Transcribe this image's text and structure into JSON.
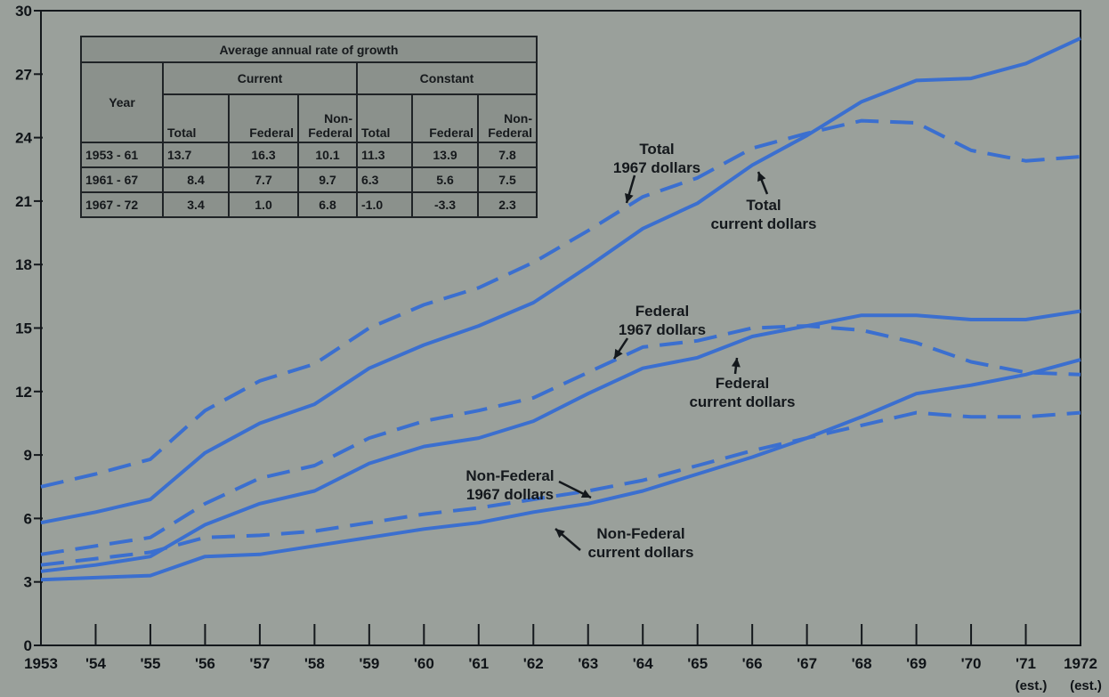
{
  "chart_data": {
    "type": "line",
    "x": [
      "1953",
      "'54",
      "'55",
      "'56",
      "'57",
      "'58",
      "'59",
      "'60",
      "'61",
      "'62",
      "'63",
      "'64",
      "'65",
      "'66",
      "'67",
      "'68",
      "'69",
      "'70",
      "'71",
      "1972"
    ],
    "x_sublabels": {
      "'71": "(est.)",
      "1972": "(est.)"
    },
    "yticks": [
      0,
      3,
      6,
      9,
      12,
      15,
      18,
      21,
      24,
      27,
      30
    ],
    "ylim": [
      0,
      30
    ],
    "grid": false,
    "line_color": "#3b6fcf",
    "series": [
      {
        "style": "solid",
        "values": [
          5.8,
          6.3,
          6.9,
          9.1,
          10.5,
          11.4,
          13.1,
          14.2,
          15.1,
          16.2,
          17.9,
          19.7,
          20.9,
          22.7,
          24.1,
          25.7,
          26.7,
          26.8,
          27.5,
          28.7
        ]
      },
      {
        "style": "dashed",
        "values": [
          7.5,
          8.1,
          8.8,
          11.1,
          12.5,
          13.3,
          15.0,
          16.1,
          16.9,
          18.1,
          19.6,
          21.2,
          22.1,
          23.5,
          24.2,
          24.8,
          24.7,
          23.4,
          22.9,
          23.1
        ]
      },
      {
        "style": "solid",
        "values": [
          3.5,
          3.8,
          4.2,
          5.7,
          6.7,
          7.3,
          8.6,
          9.4,
          9.8,
          10.6,
          11.9,
          13.1,
          13.6,
          14.6,
          15.1,
          15.6,
          15.6,
          15.4,
          15.4,
          15.8
        ]
      },
      {
        "style": "dashed",
        "values": [
          4.3,
          4.7,
          5.1,
          6.7,
          7.9,
          8.5,
          9.8,
          10.6,
          11.1,
          11.7,
          12.9,
          14.1,
          14.4,
          15.0,
          15.1,
          14.9,
          14.3,
          13.4,
          12.9,
          12.8
        ]
      },
      {
        "style": "solid",
        "values": [
          3.1,
          3.2,
          3.3,
          4.2,
          4.3,
          4.7,
          5.1,
          5.5,
          5.8,
          6.3,
          6.7,
          7.3,
          8.1,
          8.9,
          9.8,
          10.8,
          11.9,
          12.3,
          12.8,
          13.5
        ]
      },
      {
        "style": "dashed",
        "values": [
          3.8,
          4.1,
          4.4,
          5.1,
          5.2,
          5.4,
          5.8,
          6.2,
          6.5,
          6.9,
          7.3,
          7.8,
          8.5,
          9.2,
          9.8,
          10.4,
          11.0,
          10.8,
          10.8,
          11.0
        ]
      }
    ],
    "annotations": [
      {
        "lines": [
          "Total",
          "1967 dollars"
        ]
      },
      {
        "lines": [
          "Total",
          "current dollars"
        ]
      },
      {
        "lines": [
          "Federal",
          "1967 dollars"
        ]
      },
      {
        "lines": [
          "Federal",
          "current dollars"
        ]
      },
      {
        "lines": [
          "Non-Federal",
          "1967 dollars"
        ]
      },
      {
        "lines": [
          "Non-Federal",
          "current dollars"
        ]
      }
    ]
  },
  "table": {
    "title": "Average annual rate of growth",
    "group_current": "Current",
    "group_constant": "Constant",
    "col_year": "Year",
    "columns": [
      "Total",
      "Federal",
      "Non-\nFederal",
      "Total",
      "Federal",
      "Non-\nFederal"
    ],
    "rows": [
      {
        "year": "1953 - 61",
        "values": [
          "13.7",
          "16.3",
          "10.1",
          "11.3",
          "13.9",
          "7.8"
        ]
      },
      {
        "year": "1961 - 67",
        "values": [
          "8.4",
          "7.7",
          "9.7",
          "6.3",
          "5.6",
          "7.5"
        ]
      },
      {
        "year": "1967 - 72",
        "values": [
          "3.4",
          "1.0",
          "6.8",
          "-1.0",
          "-3.3",
          "2.3"
        ]
      }
    ]
  }
}
